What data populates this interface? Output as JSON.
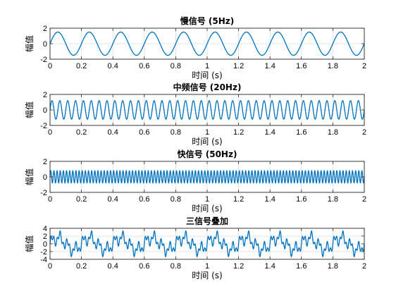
{
  "chart_data": [
    {
      "type": "line",
      "title": "慢信号 (5Hz)",
      "xlabel": "时间 (s)",
      "ylabel": "幅值",
      "xlim": [
        0,
        2
      ],
      "ylim": [
        -2,
        2
      ],
      "xticks": [
        "0",
        "0.2",
        "0.4",
        "0.6",
        "0.8",
        "1",
        "1.2",
        "1.4",
        "1.6",
        "1.8",
        "2"
      ],
      "yticks": [
        "2",
        "0",
        "-2"
      ],
      "grid": true,
      "series": [
        {
          "components": [
            {
              "amplitude": 1.5,
              "frequency_hz": 5
            }
          ]
        }
      ],
      "line_color": "#0072BD"
    },
    {
      "type": "line",
      "title": "中频信号 (20Hz)",
      "xlabel": "时间 (s)",
      "ylabel": "幅值",
      "xlim": [
        0,
        2
      ],
      "ylim": [
        -2,
        2
      ],
      "xticks": [
        "0",
        "0.2",
        "0.4",
        "0.6",
        "0.8",
        "1",
        "1.2",
        "1.4",
        "1.6",
        "1.8",
        "2"
      ],
      "yticks": [
        "2",
        "0",
        "-2"
      ],
      "grid": true,
      "series": [
        {
          "components": [
            {
              "amplitude": 1.2,
              "frequency_hz": 20
            }
          ]
        }
      ],
      "line_color": "#0072BD"
    },
    {
      "type": "line",
      "title": "快信号 (50Hz)",
      "xlabel": "时间 (s)",
      "ylabel": "幅值",
      "xlim": [
        0,
        2
      ],
      "ylim": [
        -2,
        2
      ],
      "xticks": [
        "0",
        "0.2",
        "0.4",
        "0.6",
        "0.8",
        "1",
        "1.2",
        "1.4",
        "1.6",
        "1.8",
        "2"
      ],
      "yticks": [
        "2",
        "0",
        "-2"
      ],
      "grid": true,
      "series": [
        {
          "components": [
            {
              "amplitude": 0.8,
              "frequency_hz": 50
            }
          ]
        }
      ],
      "line_color": "#0072BD"
    },
    {
      "type": "line",
      "title": "三信号叠加",
      "xlabel": "时间 (s)",
      "ylabel": "幅值",
      "xlim": [
        0,
        2
      ],
      "ylim": [
        -4,
        4
      ],
      "xticks": [
        "0",
        "0.2",
        "0.4",
        "0.6",
        "0.8",
        "1",
        "1.2",
        "1.4",
        "1.6",
        "1.8",
        "2"
      ],
      "yticks": [
        "4",
        "2",
        "0",
        "-2",
        "-4"
      ],
      "grid": true,
      "series": [
        {
          "components": [
            {
              "amplitude": 1.5,
              "frequency_hz": 5
            },
            {
              "amplitude": 1.2,
              "frequency_hz": 20
            },
            {
              "amplitude": 0.8,
              "frequency_hz": 50
            }
          ]
        }
      ],
      "line_color": "#0072BD"
    }
  ]
}
